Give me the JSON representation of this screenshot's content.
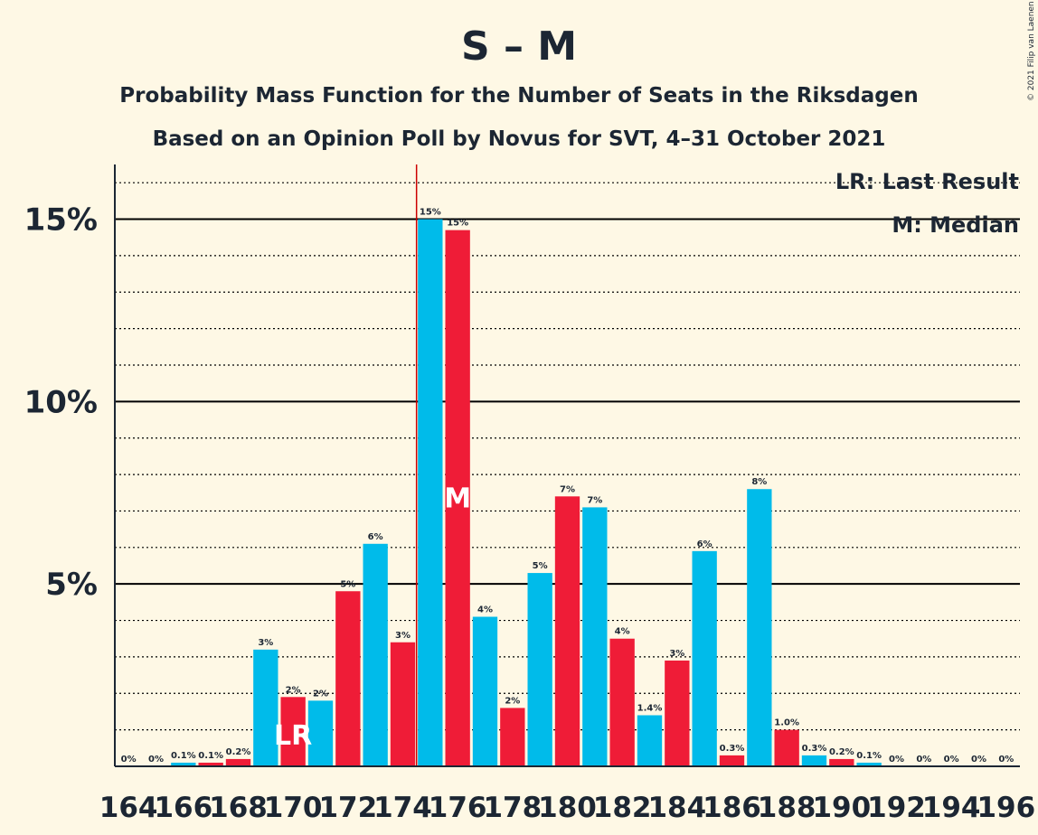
{
  "title": "S – M",
  "subtitle1": "Probability Mass Function for the Number of Seats in the Riksdagen",
  "subtitle2": "Based on an Opinion Poll by Novus for SVT, 4–31 October 2021",
  "copyright": "© 2021 Filip van Laenen",
  "legend": {
    "lr": "LR: Last Result",
    "m": "M: Median"
  },
  "colors": {
    "blue": "#00BBEA",
    "red": "#EF1C37",
    "background": "#FEF8E5",
    "text": "#1c2633",
    "marker_line": "#cc0000"
  },
  "chart_data": {
    "type": "bar",
    "x": [
      164,
      165,
      166,
      167,
      168,
      169,
      170,
      171,
      172,
      173,
      174,
      175,
      176,
      177,
      178,
      179,
      180,
      181,
      182,
      183,
      184,
      185,
      186,
      187,
      188,
      189,
      190,
      191,
      192,
      193,
      194,
      195,
      196
    ],
    "values": [
      0,
      0,
      0.1,
      0.1,
      0.2,
      3.2,
      1.9,
      1.8,
      4.8,
      6.1,
      3.4,
      15.0,
      14.7,
      4.1,
      1.6,
      5.3,
      7.4,
      7.1,
      3.5,
      1.4,
      2.9,
      5.9,
      0.3,
      7.6,
      1.0,
      0.3,
      0.2,
      0.1,
      0,
      0,
      0,
      0,
      0
    ],
    "labels": [
      "0%",
      "0%",
      "0.1%",
      "0.1%",
      "0.2%",
      "3%",
      "2%",
      "2%",
      "5%",
      "6%",
      "3%",
      "15%",
      "15%",
      "4%",
      "2%",
      "5%",
      "7%",
      "7%",
      "4%",
      "1.4%",
      "3%",
      "6%",
      "0.3%",
      "8%",
      "1.0%",
      "0.3%",
      "0.2%",
      "0.1%",
      "0%",
      "0%",
      "0%",
      "0%",
      "0%"
    ],
    "colors": [
      "blue",
      "red",
      "blue",
      "red",
      "red",
      "blue",
      "red",
      "blue",
      "red",
      "blue",
      "red",
      "blue",
      "red",
      "blue",
      "red",
      "blue",
      "red",
      "blue",
      "red",
      "blue",
      "red",
      "blue",
      "red",
      "blue",
      "red",
      "blue",
      "red",
      "blue",
      "red",
      "blue",
      "red",
      "blue",
      "red"
    ],
    "xticks": [
      164,
      166,
      168,
      170,
      172,
      174,
      176,
      178,
      180,
      182,
      184,
      186,
      188,
      190,
      192,
      194,
      196
    ],
    "yticks": [
      5,
      10,
      15
    ],
    "ytick_labels": [
      "5%",
      "10%",
      "15%"
    ],
    "ylim": [
      0,
      16.5
    ],
    "last_result": 170,
    "last_result_label": "LR",
    "median": 176,
    "median_label": "M",
    "majority_line": 174.5,
    "grid": true
  }
}
